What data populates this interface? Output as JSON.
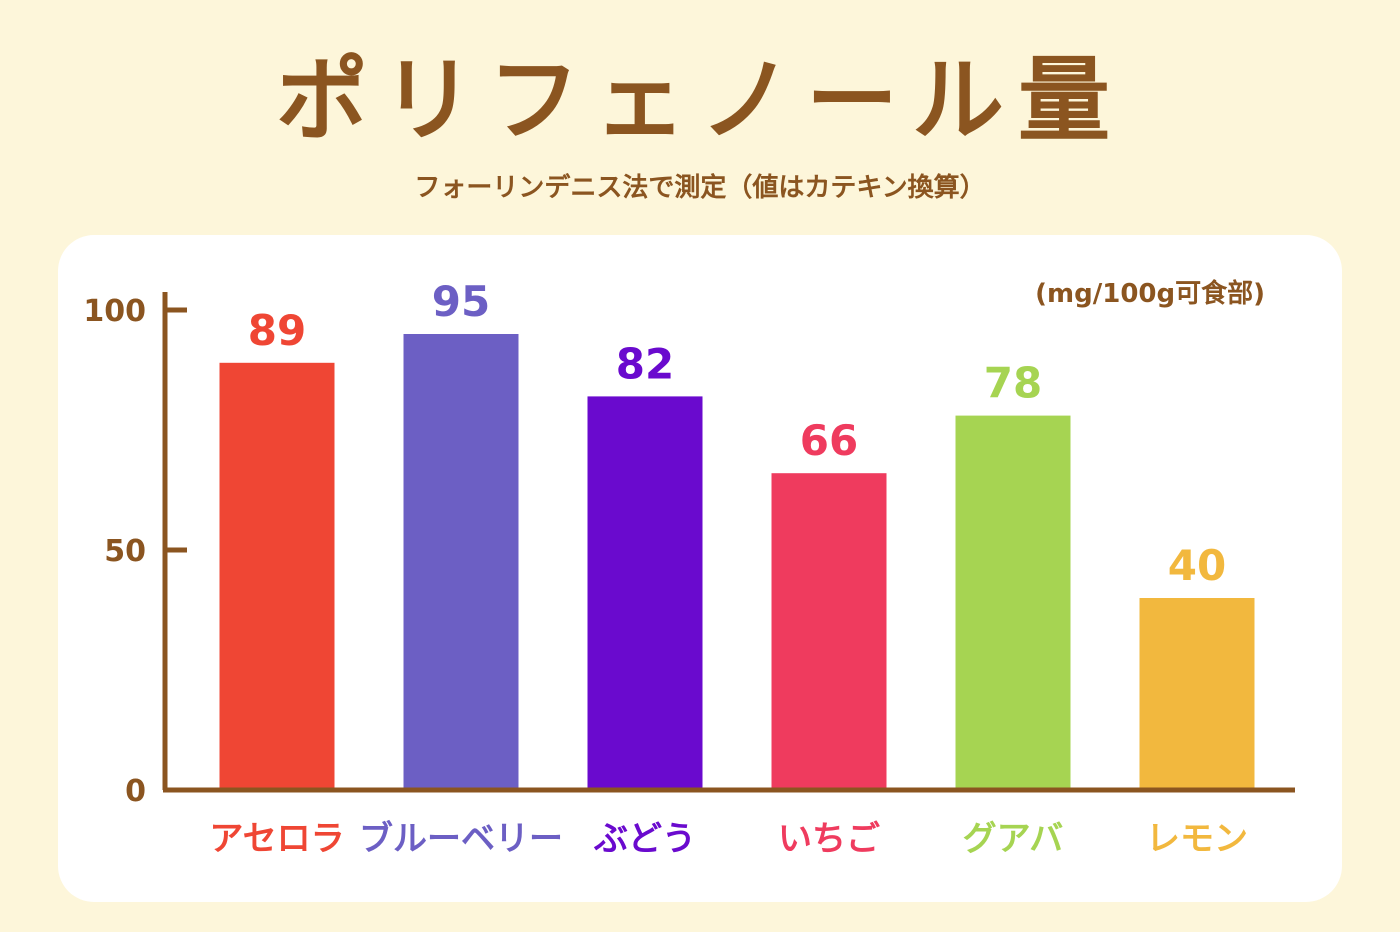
{
  "chart_data": {
    "type": "bar",
    "title": "ポリフェノール量",
    "subtitle": "フォーリンデニス法で測定（値はカテキン換算）",
    "unit": "(mg/100g可食部)",
    "xlabel": "",
    "ylabel": "",
    "ylim": [
      0,
      100
    ],
    "yticks": [
      0,
      50,
      100
    ],
    "ytick_labels": [
      "0",
      "50",
      "100"
    ],
    "grid": false,
    "categories": [
      "アセロラ",
      "ブルーベリー",
      "ぶどう",
      "いちご",
      "グアバ",
      "レモン"
    ],
    "values": [
      89,
      95,
      82,
      66,
      78,
      40
    ],
    "value_labels": [
      "89",
      "95",
      "82",
      "66",
      "78",
      "40"
    ],
    "colors": [
      "#EF4634",
      "#6C5FC4",
      "#6A0ACE",
      "#EF3B5E",
      "#A6D452",
      "#F2B83E"
    ],
    "axis_color": "#8B5520"
  }
}
